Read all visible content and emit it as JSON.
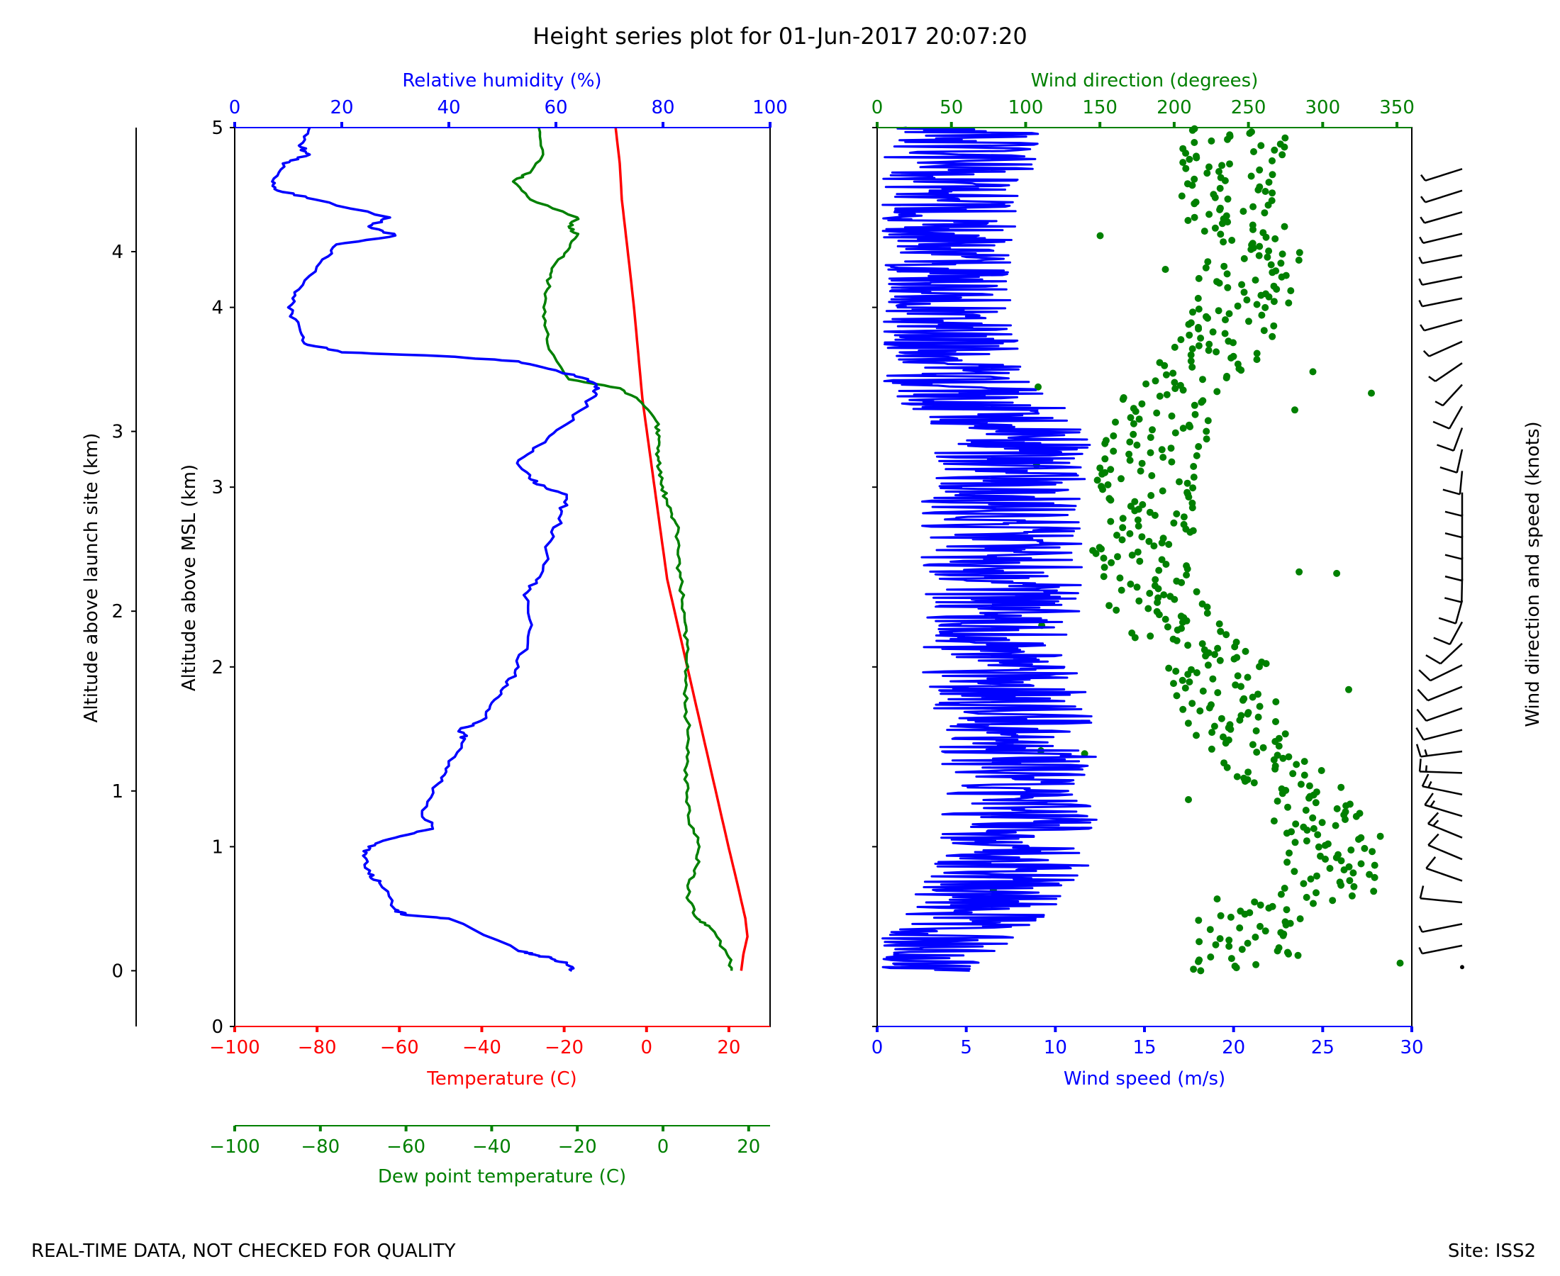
{
  "title": "Height series plot for 01-Jun-2017 20:07:20",
  "footer": {
    "left": "REAL-TIME DATA, NOT CHECKED FOR QUALITY",
    "right": "Site: ISS2"
  },
  "colors": {
    "temperature": "#ff0000",
    "dewpoint": "#008000",
    "humidity": "#0000ff",
    "wind_speed": "#0000ff",
    "wind_direction": "#008000",
    "barbs": "#000000",
    "text": "#000000"
  },
  "axes": {
    "launch_site": {
      "label": "Altitude above launch site (km)",
      "ticks": [
        0,
        1,
        2,
        3,
        4
      ],
      "tick_labels": [
        "0",
        "1",
        "2",
        "3",
        "4"
      ]
    },
    "msl": {
      "label": "Altitude above MSL (km)",
      "ticks": [
        0,
        1,
        2,
        3,
        4,
        5
      ],
      "tick_labels": [
        "0",
        "1",
        "2",
        "3",
        "4",
        "5"
      ]
    },
    "humidity": {
      "label": "Relative humidity (%)",
      "ticks": [
        0,
        20,
        40,
        60,
        80,
        100
      ],
      "tick_labels": [
        "0",
        "20",
        "40",
        "60",
        "80",
        "100"
      ]
    },
    "temperature": {
      "label": "Temperature (C)",
      "ticks": [
        -100,
        -80,
        -60,
        -40,
        -20,
        0,
        20
      ],
      "tick_labels": [
        "−100",
        "−80",
        "−60",
        "−40",
        "−20",
        "0",
        "20"
      ]
    },
    "dewpoint": {
      "label": "Dew point temperature (C)",
      "ticks": [
        -100,
        -80,
        -60,
        -40,
        -20,
        0,
        20
      ],
      "tick_labels": [
        "−100",
        "−80",
        "−60",
        "−40",
        "−20",
        "0",
        "20"
      ]
    },
    "wind_direction": {
      "label": "Wind direction (degrees)",
      "ticks": [
        0,
        50,
        100,
        150,
        200,
        250,
        300,
        350
      ],
      "tick_labels": [
        "0",
        "50",
        "100",
        "150",
        "200",
        "250",
        "300",
        "350"
      ]
    },
    "wind_speed": {
      "label": "Wind speed (m/s)",
      "ticks": [
        0,
        5,
        10,
        15,
        20,
        25,
        30
      ],
      "tick_labels": [
        "0",
        "5",
        "10",
        "15",
        "20",
        "25",
        "30"
      ]
    },
    "barbs": {
      "label": "Wind direction and speed (knots)"
    }
  },
  "chart_data": [
    {
      "type": "line",
      "name": "thermo-profile",
      "ylabel": "Altitude above MSL (km)",
      "ylim": [
        0,
        5
      ],
      "secondary_ylabel": "Altitude above launch site (km)",
      "launch_site_offset_km": 0.31,
      "series": [
        {
          "name": "Temperature (C)",
          "axis": "temperature",
          "xlim": [
            -100,
            30
          ],
          "points": [
            [
              23,
              0.31
            ],
            [
              23.5,
              0.4
            ],
            [
              24.5,
              0.5
            ],
            [
              24,
              0.6
            ],
            [
              22,
              0.8
            ],
            [
              20,
              0.99
            ],
            [
              17.5,
              1.24
            ],
            [
              15,
              1.49
            ],
            [
              12.5,
              1.74
            ],
            [
              10,
              1.99
            ],
            [
              7.5,
              2.24
            ],
            [
              5,
              2.49
            ],
            [
              3.5,
              2.74
            ],
            [
              2,
              2.99
            ],
            [
              0.5,
              3.24
            ],
            [
              -1,
              3.49
            ],
            [
              -2,
              3.74
            ],
            [
              -3,
              3.99
            ],
            [
              -4,
              4.2
            ],
            [
              -5,
              4.4
            ],
            [
              -6,
              4.6
            ],
            [
              -6.5,
              4.8
            ],
            [
              -7.5,
              5.0
            ]
          ]
        },
        {
          "name": "Dew point temperature (C)",
          "axis": "dewpoint",
          "xlim": [
            -100,
            25
          ],
          "points": [
            [
              16,
              0.31
            ],
            [
              15,
              0.4
            ],
            [
              11,
              0.55
            ],
            [
              8,
              0.6
            ],
            [
              6,
              0.7
            ],
            [
              6,
              0.8
            ],
            [
              8,
              0.9
            ],
            [
              8.5,
              1.0
            ],
            [
              6,
              1.15
            ],
            [
              5.5,
              1.3
            ],
            [
              5.5,
              1.45
            ],
            [
              6,
              1.6
            ],
            [
              5.5,
              1.75
            ],
            [
              5.5,
              1.9
            ],
            [
              5.5,
              2.05
            ],
            [
              5.5,
              2.2
            ],
            [
              4.5,
              2.35
            ],
            [
              4,
              2.5
            ],
            [
              3.5,
              2.65
            ],
            [
              3,
              2.8
            ],
            [
              1,
              2.9
            ],
            [
              0,
              3.0
            ],
            [
              -1,
              3.1
            ],
            [
              -1,
              3.2
            ],
            [
              -1.5,
              3.3
            ],
            [
              -1,
              3.35
            ],
            [
              -5,
              3.47
            ],
            [
              -10,
              3.55
            ],
            [
              -22,
              3.6
            ],
            [
              -27,
              3.8
            ],
            [
              -28,
              3.95
            ],
            [
              -27,
              4.1
            ],
            [
              -26,
              4.2
            ],
            [
              -23,
              4.3
            ],
            [
              -20,
              4.4
            ],
            [
              -22,
              4.45
            ],
            [
              -20,
              4.5
            ],
            [
              -31,
              4.6
            ],
            [
              -35,
              4.7
            ],
            [
              -31,
              4.75
            ],
            [
              -28,
              4.85
            ],
            [
              -29,
              5.0
            ]
          ]
        },
        {
          "name": "Relative humidity (%)",
          "axis": "humidity",
          "xlim": [
            0,
            100
          ],
          "points": [
            [
              63,
              0.31
            ],
            [
              62,
              0.35
            ],
            [
              59,
              0.38
            ],
            [
              56,
              0.4
            ],
            [
              53,
              0.42
            ],
            [
              40,
              0.6
            ],
            [
              32,
              0.62
            ],
            [
              30,
              0.65
            ],
            [
              27,
              0.8
            ],
            [
              25,
              0.85
            ],
            [
              24,
              0.95
            ],
            [
              25,
              1.0
            ],
            [
              30,
              1.05
            ],
            [
              37,
              1.1
            ],
            [
              35,
              1.2
            ],
            [
              38,
              1.35
            ],
            [
              40,
              1.45
            ],
            [
              43,
              1.6
            ],
            [
              42,
              1.65
            ],
            [
              46,
              1.7
            ],
            [
              48,
              1.8
            ],
            [
              51,
              1.9
            ],
            [
              53,
              2.0
            ],
            [
              55,
              2.2
            ],
            [
              54,
              2.4
            ],
            [
              57,
              2.5
            ],
            [
              59,
              2.7
            ],
            [
              61,
              2.85
            ],
            [
              62,
              2.95
            ],
            [
              58,
              3.0
            ],
            [
              55,
              3.05
            ],
            [
              53,
              3.15
            ],
            [
              58,
              3.25
            ],
            [
              62,
              3.35
            ],
            [
              67,
              3.5
            ],
            [
              68,
              3.55
            ],
            [
              66,
              3.6
            ],
            [
              60,
              3.65
            ],
            [
              53,
              3.7
            ],
            [
              38,
              3.73
            ],
            [
              20,
              3.75
            ],
            [
              13,
              3.8
            ],
            [
              12,
              3.9
            ],
            [
              10,
              4.0
            ],
            [
              12,
              4.1
            ],
            [
              16,
              4.25
            ],
            [
              19,
              4.35
            ],
            [
              30,
              4.4
            ],
            [
              25,
              4.45
            ],
            [
              29,
              4.5
            ],
            [
              15,
              4.6
            ],
            [
              8,
              4.65
            ],
            [
              7,
              4.7
            ],
            [
              9,
              4.8
            ],
            [
              14,
              4.85
            ],
            [
              12,
              4.9
            ],
            [
              14,
              5.0
            ]
          ]
        }
      ]
    },
    {
      "type": "scatter+line",
      "name": "wind-profile",
      "ylim": [
        0,
        5
      ],
      "series": [
        {
          "name": "Wind speed (m/s)",
          "axis": "wind_speed",
          "xlim": [
            0,
            30
          ],
          "mean_profile": [
            [
              1,
              0.31
            ],
            [
              2,
              0.4
            ],
            [
              4,
              0.5
            ],
            [
              5,
              0.6
            ],
            [
              7,
              0.8
            ],
            [
              8,
              1.0
            ],
            [
              8,
              1.5
            ],
            [
              7,
              2.0
            ],
            [
              7,
              2.5
            ],
            [
              7,
              3.0
            ],
            [
              8,
              3.3
            ],
            [
              4,
              3.6
            ],
            [
              3,
              4.0
            ],
            [
              3,
              4.3
            ],
            [
              4,
              4.6
            ],
            [
              5,
              5.0
            ]
          ]
        },
        {
          "name": "Wind direction (degrees)",
          "axis": "wind_direction",
          "xlim": [
            0,
            360
          ],
          "mean_profile": [
            [
              250,
              0.31
            ],
            [
              250,
              0.6
            ],
            [
              300,
              0.75
            ],
            [
              310,
              1.0
            ],
            [
              290,
              1.3
            ],
            [
              260,
              1.5
            ],
            [
              240,
              1.7
            ],
            [
              230,
              2.0
            ],
            [
              200,
              2.2
            ],
            [
              180,
              2.5
            ],
            [
              180,
              3.0
            ],
            [
              190,
              3.3
            ],
            [
              200,
              3.5
            ],
            [
              250,
              4.0
            ],
            [
              250,
              4.3
            ],
            [
              240,
              4.6
            ],
            [
              240,
              5.0
            ]
          ]
        }
      ],
      "barbs_label": "Wind direction and speed (knots)"
    }
  ]
}
